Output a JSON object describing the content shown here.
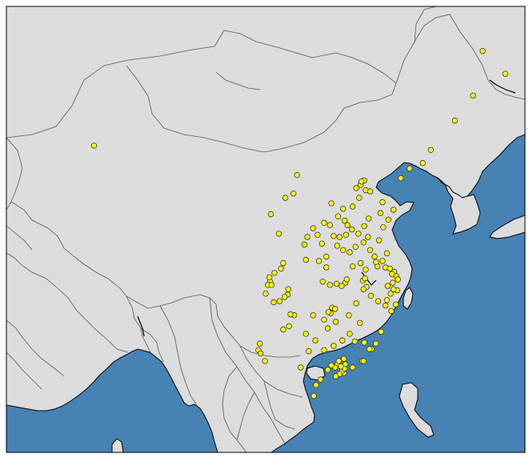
{
  "map": {
    "projection": "plate-carree",
    "extent": {
      "lon_min": 68,
      "lon_max": 139,
      "lat_min": 15,
      "lat_max": 56
    },
    "colors": {
      "land": "#dcdcdc",
      "ocean": "#4682b4",
      "border": "#555555",
      "coast": "#000000",
      "frame": "#000000",
      "marker_fill": "#ffff00",
      "marker_edge": "#333333"
    },
    "marker": {
      "shape": "circle"
    }
  },
  "points": [
    [
      133.2,
      51.9
    ],
    [
      131.9,
      47.8
    ],
    [
      136.3,
      49.8
    ],
    [
      129.4,
      45.5
    ],
    [
      126.1,
      42.8
    ],
    [
      125.0,
      41.6
    ],
    [
      123.2,
      41.1
    ],
    [
      122.0,
      40.2
    ],
    [
      80.0,
      43.2
    ],
    [
      107.8,
      40.5
    ],
    [
      107.3,
      38.8
    ],
    [
      104.2,
      36.9
    ],
    [
      105.3,
      35.1
    ],
    [
      109.2,
      34.8
    ],
    [
      108.8,
      34.1
    ],
    [
      111.2,
      34.2
    ],
    [
      112.8,
      34.9
    ],
    [
      112.3,
      35.9
    ],
    [
      113.4,
      36.7
    ],
    [
      114.1,
      37.4
    ],
    [
      115.4,
      37.6
    ],
    [
      116.3,
      38.4
    ],
    [
      115.9,
      39.3
    ],
    [
      116.5,
      39.6
    ],
    [
      117.0,
      40.0
    ],
    [
      116.6,
      39.9
    ],
    [
      117.2,
      39.1
    ],
    [
      117.8,
      39.0
    ],
    [
      119.5,
      38.0
    ],
    [
      119.2,
      37.0
    ],
    [
      120.3,
      36.4
    ],
    [
      121.0,
      37.3
    ],
    [
      119.6,
      35.7
    ],
    [
      117.6,
      36.5
    ],
    [
      117.0,
      35.8
    ],
    [
      116.2,
      35.1
    ],
    [
      115.3,
      35.5
    ],
    [
      114.7,
      35.9
    ],
    [
      114.3,
      36.3
    ],
    [
      114.5,
      35.0
    ],
    [
      113.6,
      34.8
    ],
    [
      113.3,
      34.0
    ],
    [
      114.1,
      33.6
    ],
    [
      115.8,
      33.9
    ],
    [
      116.9,
      34.3
    ],
    [
      117.8,
      33.6
    ],
    [
      118.4,
      33.0
    ],
    [
      119.0,
      34.5
    ],
    [
      120.1,
      33.3
    ],
    [
      119.5,
      32.6
    ],
    [
      118.8,
      32.1
    ],
    [
      119.9,
      32.0
    ],
    [
      120.5,
      31.9
    ],
    [
      121.1,
      31.6
    ],
    [
      121.4,
      31.2
    ],
    [
      121.6,
      30.9
    ],
    [
      120.9,
      30.6
    ],
    [
      120.2,
      30.3
    ],
    [
      121.5,
      29.9
    ],
    [
      120.6,
      29.6
    ],
    [
      120.1,
      29.0
    ],
    [
      121.3,
      28.6
    ],
    [
      120.7,
      28.0
    ],
    [
      119.9,
      28.5
    ],
    [
      118.9,
      28.9
    ],
    [
      117.9,
      29.4
    ],
    [
      117.3,
      30.2
    ],
    [
      116.8,
      30.8
    ],
    [
      117.2,
      31.8
    ],
    [
      116.5,
      32.4
    ],
    [
      115.4,
      32.1
    ],
    [
      114.4,
      30.6
    ],
    [
      113.9,
      30.3
    ],
    [
      113.2,
      30.5
    ],
    [
      112.3,
      30.4
    ],
    [
      111.3,
      30.7
    ],
    [
      112.6,
      28.3
    ],
    [
      113.0,
      28.2
    ],
    [
      112.4,
      27.8
    ],
    [
      111.5,
      27.2
    ],
    [
      113.1,
      27.0
    ],
    [
      112.0,
      26.4
    ],
    [
      115.9,
      28.7
    ],
    [
      114.9,
      27.6
    ],
    [
      115.0,
      25.9
    ],
    [
      116.4,
      26.9
    ],
    [
      117.0,
      25.1
    ],
    [
      118.6,
      25.0
    ],
    [
      119.3,
      26.1
    ],
    [
      118.0,
      24.5
    ],
    [
      117.7,
      24.5
    ],
    [
      116.7,
      23.4
    ],
    [
      115.4,
      22.8
    ],
    [
      114.2,
      22.3
    ],
    [
      114.0,
      22.5
    ],
    [
      113.6,
      22.2
    ],
    [
      113.3,
      23.1
    ],
    [
      113.0,
      22.8
    ],
    [
      112.5,
      23.0
    ],
    [
      113.5,
      23.4
    ],
    [
      114.4,
      23.1
    ],
    [
      113.1,
      22.0
    ],
    [
      112.0,
      22.6
    ],
    [
      111.0,
      21.7
    ],
    [
      110.4,
      21.2
    ],
    [
      110.1,
      20.2
    ],
    [
      108.3,
      22.8
    ],
    [
      109.4,
      24.3
    ],
    [
      110.3,
      25.3
    ],
    [
      111.5,
      24.4
    ],
    [
      112.8,
      24.8
    ],
    [
      106.7,
      26.6
    ],
    [
      105.9,
      26.3
    ],
    [
      107.4,
      27.6
    ],
    [
      106.9,
      27.7
    ],
    [
      106.5,
      29.5
    ],
    [
      106.1,
      29.3
    ],
    [
      106.6,
      30.0
    ],
    [
      104.1,
      30.7
    ],
    [
      103.8,
      30.4
    ],
    [
      104.0,
      31.1
    ],
    [
      104.7,
      31.5
    ],
    [
      103.5,
      29.6
    ],
    [
      104.6,
      28.8
    ],
    [
      105.4,
      28.9
    ],
    [
      102.7,
      25.0
    ],
    [
      102.5,
      24.4
    ],
    [
      102.8,
      24.1
    ],
    [
      103.4,
      23.4
    ],
    [
      105.6,
      31.9
    ],
    [
      109.0,
      32.7
    ],
    [
      110.8,
      32.6
    ],
    [
      111.8,
      32.0
    ],
    [
      104.3,
      30.4
    ],
    [
      105.9,
      32.4
    ],
    [
      112.5,
      37.9
    ],
    [
      111.5,
      36.1
    ],
    [
      110.0,
      35.6
    ],
    [
      110.6,
      35.0
    ],
    [
      106.2,
      38.4
    ],
    [
      111.8,
      33.0
    ],
    [
      114.6,
      30.9
    ],
    [
      116.9,
      30.0
    ],
    [
      117.1,
      31.0
    ],
    [
      115.0,
      33.4
    ],
    [
      117.5,
      34.8
    ],
    [
      118.6,
      32.5
    ],
    [
      120.8,
      31.4
    ],
    [
      121.0,
      30.0
    ],
    [
      114.3,
      22.7
    ],
    [
      113.8,
      22.9
    ],
    [
      114.2,
      23.6
    ],
    [
      114.0,
      25.3
    ],
    [
      116.9,
      23.4
    ],
    [
      112.1,
      27.9
    ],
    [
      110.0,
      27.6
    ],
    [
      109.0,
      25.9
    ],
    [
      115.7,
      25.2
    ]
  ]
}
